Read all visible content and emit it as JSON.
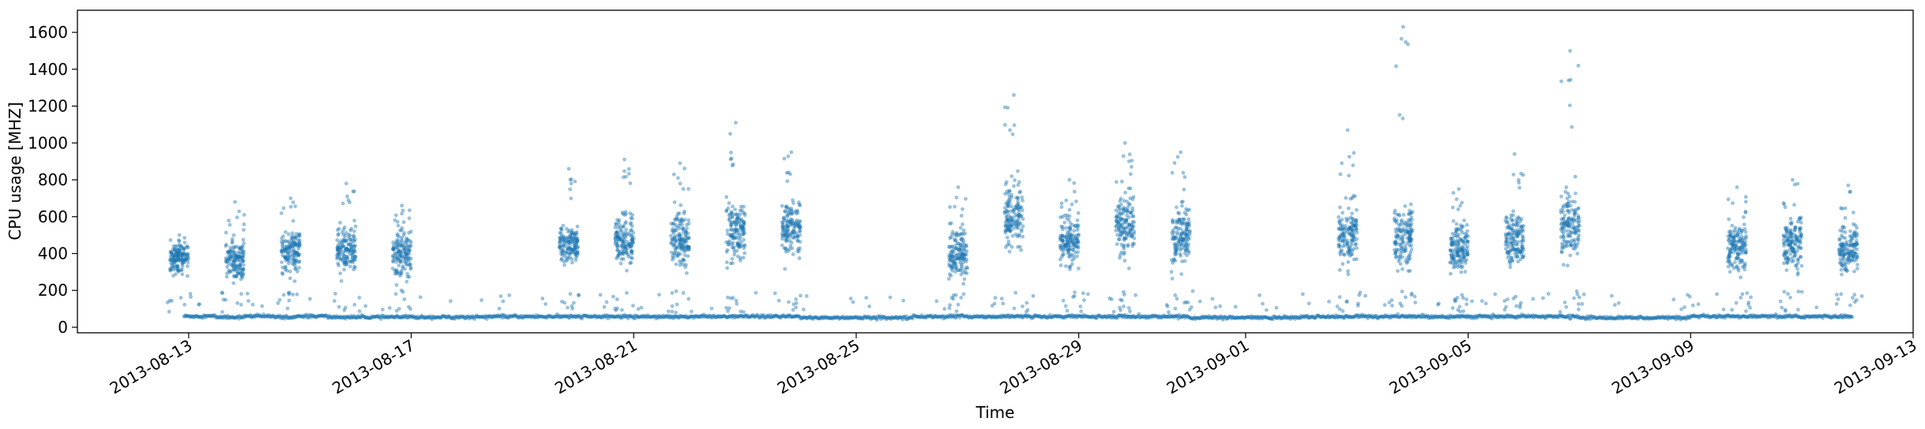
{
  "chart_data": {
    "type": "scatter",
    "title": "",
    "xlabel": "Time",
    "ylabel": "CPU usage [MHZ]",
    "xlim": [
      "2013-08-11",
      "2013-09-13"
    ],
    "ylim": [
      -30,
      1720
    ],
    "grid": false,
    "marker_color": "#1f77b4",
    "marker_alpha": 0.45,
    "x_ticks": [
      "2013-08-13",
      "2013-08-17",
      "2013-08-21",
      "2013-08-25",
      "2013-08-29",
      "2013-09-01",
      "2013-09-05",
      "2013-09-09",
      "2013-09-13"
    ],
    "y_ticks": [
      0,
      200,
      400,
      600,
      800,
      1000,
      1200,
      1400,
      1600
    ],
    "baseline": [
      {
        "start": "2013-08-12 22:00",
        "end": "2013-08-13 12:00",
        "y": 60
      },
      {
        "start": "2013-08-13 12:00",
        "end": "2013-08-14 00:00",
        "y": 55
      },
      {
        "start": "2013-08-14 00:00",
        "end": "2013-08-14 12:00",
        "y": 60
      },
      {
        "start": "2013-08-14 12:00",
        "end": "2013-08-15 00:00",
        "y": 55
      },
      {
        "start": "2013-08-15 00:00",
        "end": "2013-08-15 12:00",
        "y": 60
      },
      {
        "start": "2013-08-15 12:00",
        "end": "2013-08-16 00:00",
        "y": 55
      },
      {
        "start": "2013-08-16 00:00",
        "end": "2013-08-18 06:00",
        "y": 55
      },
      {
        "start": "2013-08-18 06:00",
        "end": "2013-08-19 00:00",
        "y": 58
      },
      {
        "start": "2013-08-19 00:00",
        "end": "2013-08-24 00:00",
        "y": 58
      },
      {
        "start": "2013-08-24 00:00",
        "end": "2013-08-26 00:00",
        "y": 52
      },
      {
        "start": "2013-08-26 00:00",
        "end": "2013-08-31 00:00",
        "y": 58
      },
      {
        "start": "2013-08-31 00:00",
        "end": "2013-09-02 00:00",
        "y": 52
      },
      {
        "start": "2013-09-02 00:00",
        "end": "2013-09-07 00:00",
        "y": 58
      },
      {
        "start": "2013-09-07 00:00",
        "end": "2013-09-09 00:00",
        "y": 52
      },
      {
        "start": "2013-09-09 00:00",
        "end": "2013-09-11 22:00",
        "y": 58
      }
    ],
    "bursts": [
      {
        "date": "2013-08-12",
        "center": 380,
        "spread": 70,
        "peak": 500
      },
      {
        "date": "2013-08-13",
        "center": 370,
        "spread": 110,
        "peak": 680
      },
      {
        "date": "2013-08-14",
        "center": 410,
        "spread": 110,
        "peak": 700
      },
      {
        "date": "2013-08-15",
        "center": 420,
        "spread": 110,
        "peak": 780
      },
      {
        "date": "2013-08-16",
        "center": 400,
        "spread": 110,
        "peak": 660
      },
      {
        "date": "2013-08-19",
        "center": 450,
        "spread": 90,
        "peak": 860
      },
      {
        "date": "2013-08-20",
        "center": 470,
        "spread": 120,
        "peak": 910
      },
      {
        "date": "2013-08-21",
        "center": 480,
        "spread": 140,
        "peak": 890
      },
      {
        "date": "2013-08-22",
        "center": 520,
        "spread": 140,
        "peak": 1110
      },
      {
        "date": "2013-08-23",
        "center": 540,
        "spread": 130,
        "peak": 950
      },
      {
        "date": "2013-08-26",
        "center": 400,
        "spread": 110,
        "peak": 760
      },
      {
        "date": "2013-08-27",
        "center": 620,
        "spread": 160,
        "peak": 1260
      },
      {
        "date": "2013-08-28",
        "center": 470,
        "spread": 120,
        "peak": 800
      },
      {
        "date": "2013-08-29",
        "center": 560,
        "spread": 150,
        "peak": 1000
      },
      {
        "date": "2013-08-30",
        "center": 480,
        "spread": 130,
        "peak": 950
      },
      {
        "date": "2013-09-02",
        "center": 500,
        "spread": 140,
        "peak": 1070
      },
      {
        "date": "2013-09-03",
        "center": 480,
        "spread": 140,
        "peak": 1630
      },
      {
        "date": "2013-09-04",
        "center": 430,
        "spread": 110,
        "peak": 750
      },
      {
        "date": "2013-09-05",
        "center": 470,
        "spread": 130,
        "peak": 940
      },
      {
        "date": "2013-09-06",
        "center": 560,
        "spread": 160,
        "peak": 1500
      },
      {
        "date": "2013-09-09",
        "center": 430,
        "spread": 120,
        "peak": 760
      },
      {
        "date": "2013-09-10",
        "center": 450,
        "spread": 120,
        "peak": 800
      },
      {
        "date": "2013-09-11",
        "center": 420,
        "spread": 110,
        "peak": 770
      }
    ]
  }
}
